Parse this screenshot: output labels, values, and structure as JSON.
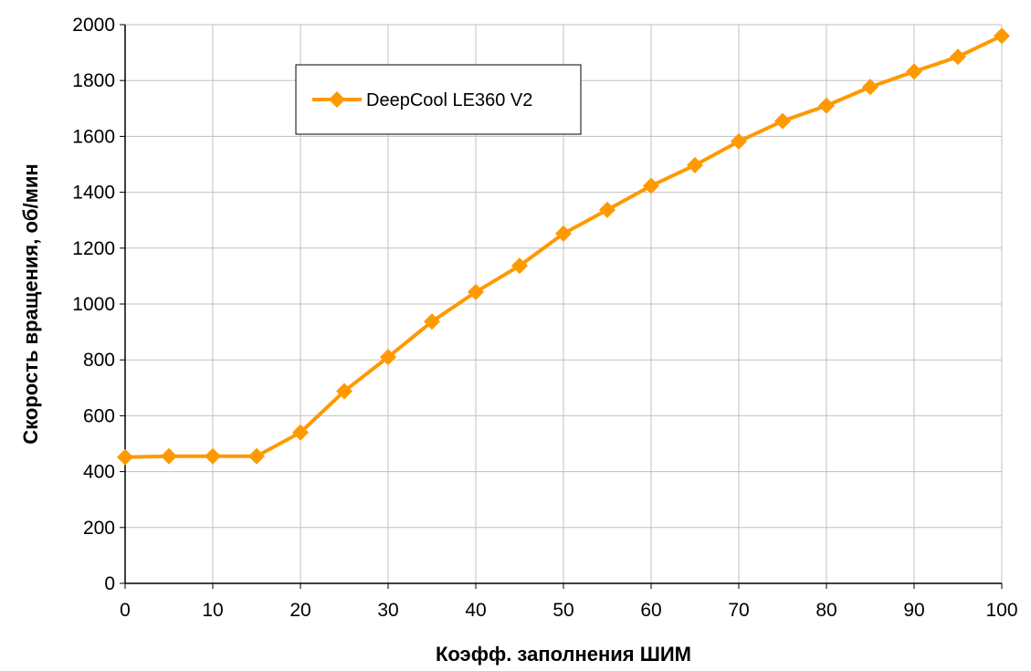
{
  "chart_data": {
    "type": "line",
    "title": "",
    "xlabel": "Коэфф. заполнения ШИМ",
    "ylabel": "Скорость вращения, об/мин",
    "xlim": [
      0,
      100
    ],
    "ylim": [
      0,
      2000
    ],
    "xticks": [
      0,
      10,
      20,
      30,
      40,
      50,
      60,
      70,
      80,
      90,
      100
    ],
    "yticks": [
      0,
      200,
      400,
      600,
      800,
      1000,
      1200,
      1400,
      1600,
      1800,
      2000
    ],
    "grid": true,
    "legend_position": "top-left",
    "series": [
      {
        "name": "DeepCool LE360 V2",
        "color": "#ff9900",
        "marker": "diamond",
        "x": [
          0,
          5,
          10,
          15,
          20,
          25,
          30,
          35,
          40,
          45,
          50,
          55,
          60,
          65,
          70,
          75,
          80,
          85,
          90,
          95,
          100
        ],
        "y": [
          452,
          455,
          455,
          455,
          540,
          688,
          810,
          937,
          1043,
          1137,
          1252,
          1337,
          1423,
          1497,
          1582,
          1655,
          1710,
          1777,
          1832,
          1885,
          1960
        ]
      }
    ]
  }
}
